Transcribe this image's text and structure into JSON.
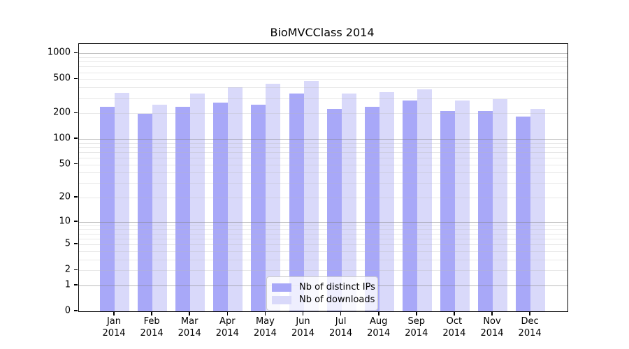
{
  "chart_data": {
    "type": "bar",
    "title": "BioMVCClass 2014",
    "categories": [
      "Jan",
      "Feb",
      "Mar",
      "Apr",
      "May",
      "Jun",
      "Jul",
      "Aug",
      "Sep",
      "Oct",
      "Nov",
      "Dec"
    ],
    "year_label": "2014",
    "series": [
      {
        "name": "Nb of distinct IPs",
        "color": "#a8a8f8",
        "values": [
          240,
          196,
          240,
          268,
          250,
          338,
          227,
          238,
          281,
          214,
          214,
          182
        ]
      },
      {
        "name": "Nb of downloads",
        "color": "#d9d9fa",
        "values": [
          345,
          250,
          342,
          405,
          440,
          480,
          338,
          353,
          378,
          284,
          293,
          225
        ]
      }
    ],
    "yscale": "log1p",
    "yticks": [
      0,
      1,
      2,
      5,
      10,
      20,
      50,
      100,
      200,
      500,
      1000
    ],
    "ylim": [
      0,
      1284
    ],
    "xlabel": "",
    "ylabel": "",
    "grid": true,
    "legend_position": "lower center",
    "colors": {
      "background": "#ffffff",
      "axis": "#000000",
      "major_grid": "#b4b4b4",
      "minor_grid": "#e8e8e8",
      "legend_border": "#cccccc"
    }
  }
}
